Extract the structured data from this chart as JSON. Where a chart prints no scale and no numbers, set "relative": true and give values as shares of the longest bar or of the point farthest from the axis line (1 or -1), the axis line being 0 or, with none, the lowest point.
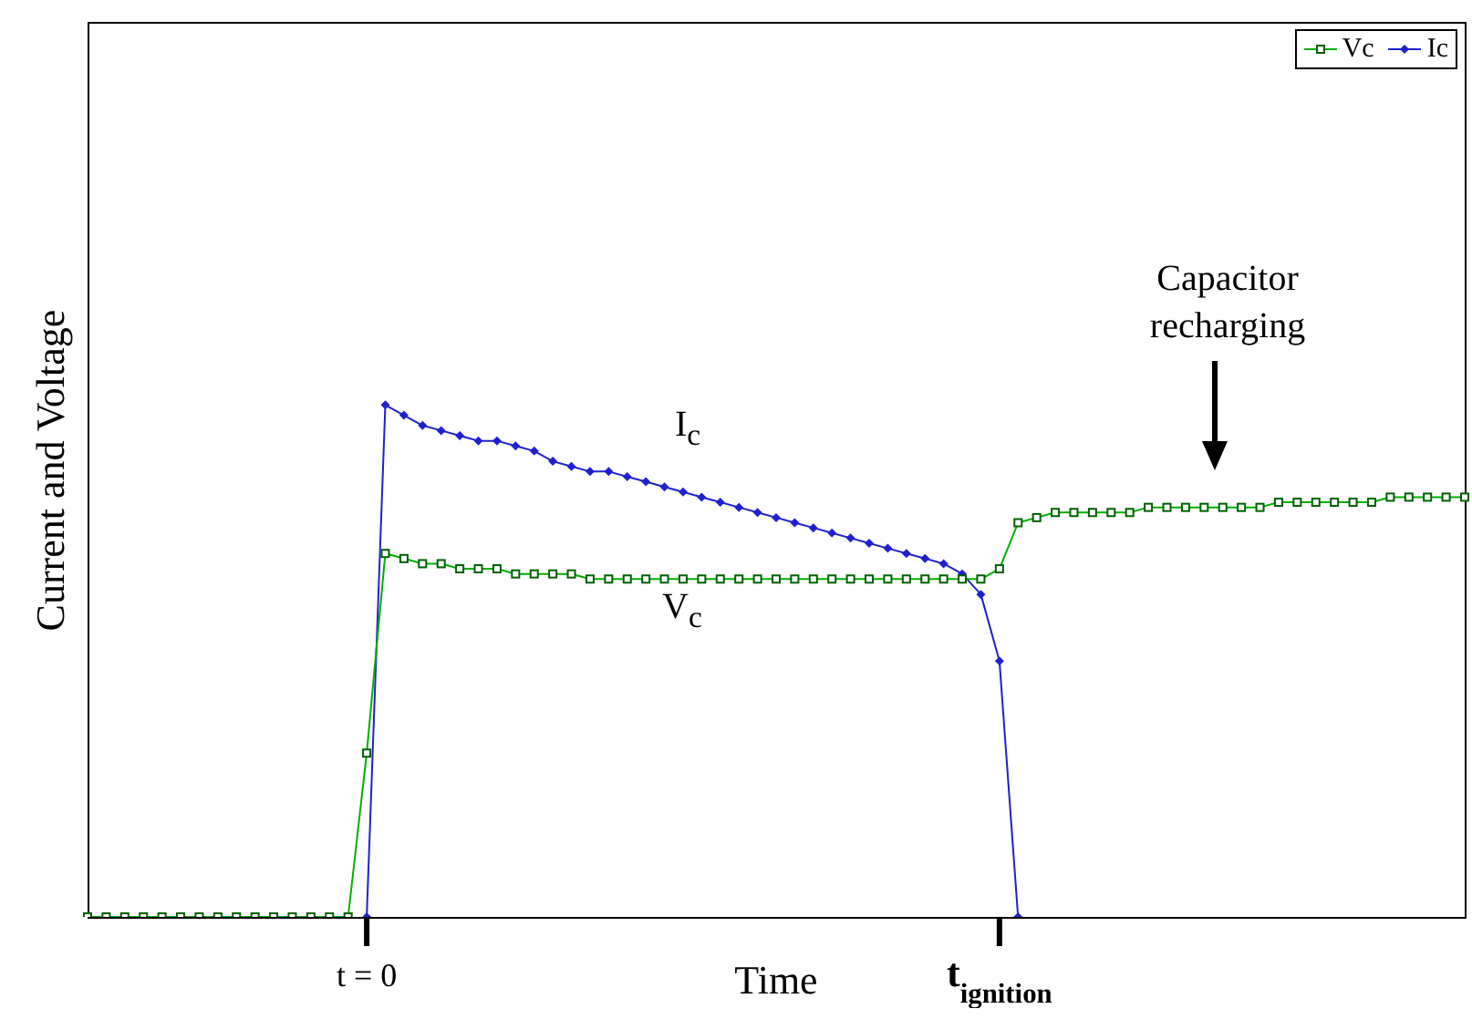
{
  "chart_data": {
    "type": "line",
    "relative": true,
    "xlabel": "Time",
    "ylabel": "Current and Voltage",
    "legend": "top right",
    "grid": false,
    "categories": [
      null,
      null,
      null,
      null,
      null,
      null,
      null,
      null,
      null,
      null,
      null,
      null,
      null,
      null,
      null,
      "t = 0",
      null,
      null,
      null,
      null,
      null,
      null,
      null,
      null,
      null,
      null,
      null,
      null,
      null,
      null,
      null,
      null,
      null,
      null,
      null,
      null,
      null,
      null,
      null,
      null,
      null,
      null,
      null,
      null,
      null,
      null,
      null,
      null,
      null,
      "t$_{ignition}$",
      null,
      null,
      null,
      null,
      null,
      null,
      null,
      null,
      null,
      null,
      null,
      null,
      null,
      null,
      null,
      null,
      null,
      null,
      null,
      null,
      null,
      null,
      null,
      null,
      null
    ],
    "series": [
      {
        "name": "Vc",
        "color": "#00b000",
        "marker": "square",
        "values": [
          0,
          0,
          0,
          0,
          0,
          0,
          0,
          0,
          0,
          0,
          0,
          0,
          0,
          0,
          0,
          0.32,
          0.71,
          0.7,
          0.69,
          0.69,
          0.68,
          0.68,
          0.68,
          0.67,
          0.67,
          0.67,
          0.67,
          0.66,
          0.66,
          0.66,
          0.66,
          0.66,
          0.66,
          0.66,
          0.66,
          0.66,
          0.66,
          0.66,
          0.66,
          0.66,
          0.66,
          0.66,
          0.66,
          0.66,
          0.66,
          0.66,
          0.66,
          0.66,
          0.66,
          0.68,
          0.77,
          0.78,
          0.79,
          0.79,
          0.79,
          0.79,
          0.79,
          0.8,
          0.8,
          0.8,
          0.8,
          0.8,
          0.8,
          0.8,
          0.81,
          0.81,
          0.81,
          0.81,
          0.81,
          0.81,
          0.82,
          0.82,
          0.82,
          0.82,
          0.82
        ]
      },
      {
        "name": "Ic",
        "color": "#2020d0",
        "marker": "diamond",
        "values": [
          null,
          null,
          null,
          null,
          null,
          null,
          null,
          null,
          null,
          null,
          null,
          null,
          null,
          null,
          null,
          0,
          1,
          0.98,
          0.96,
          0.95,
          0.94,
          0.93,
          0.93,
          0.92,
          0.91,
          0.89,
          0.88,
          0.87,
          0.87,
          0.86,
          0.85,
          0.84,
          0.83,
          0.82,
          0.81,
          0.8,
          0.79,
          0.78,
          0.77,
          0.76,
          0.75,
          0.74,
          0.73,
          0.72,
          0.71,
          0.7,
          0.69,
          0.67,
          0.63,
          0.5,
          0,
          null,
          null,
          null,
          null,
          null,
          null,
          null,
          null,
          null,
          null,
          null,
          null,
          null,
          null,
          null,
          null,
          null,
          null,
          null,
          null,
          null,
          null,
          null,
          null
        ]
      }
    ],
    "annotations": [
      "I$_{c}$",
      "V$_{c}$",
      "Capacitor recharging"
    ]
  }
}
